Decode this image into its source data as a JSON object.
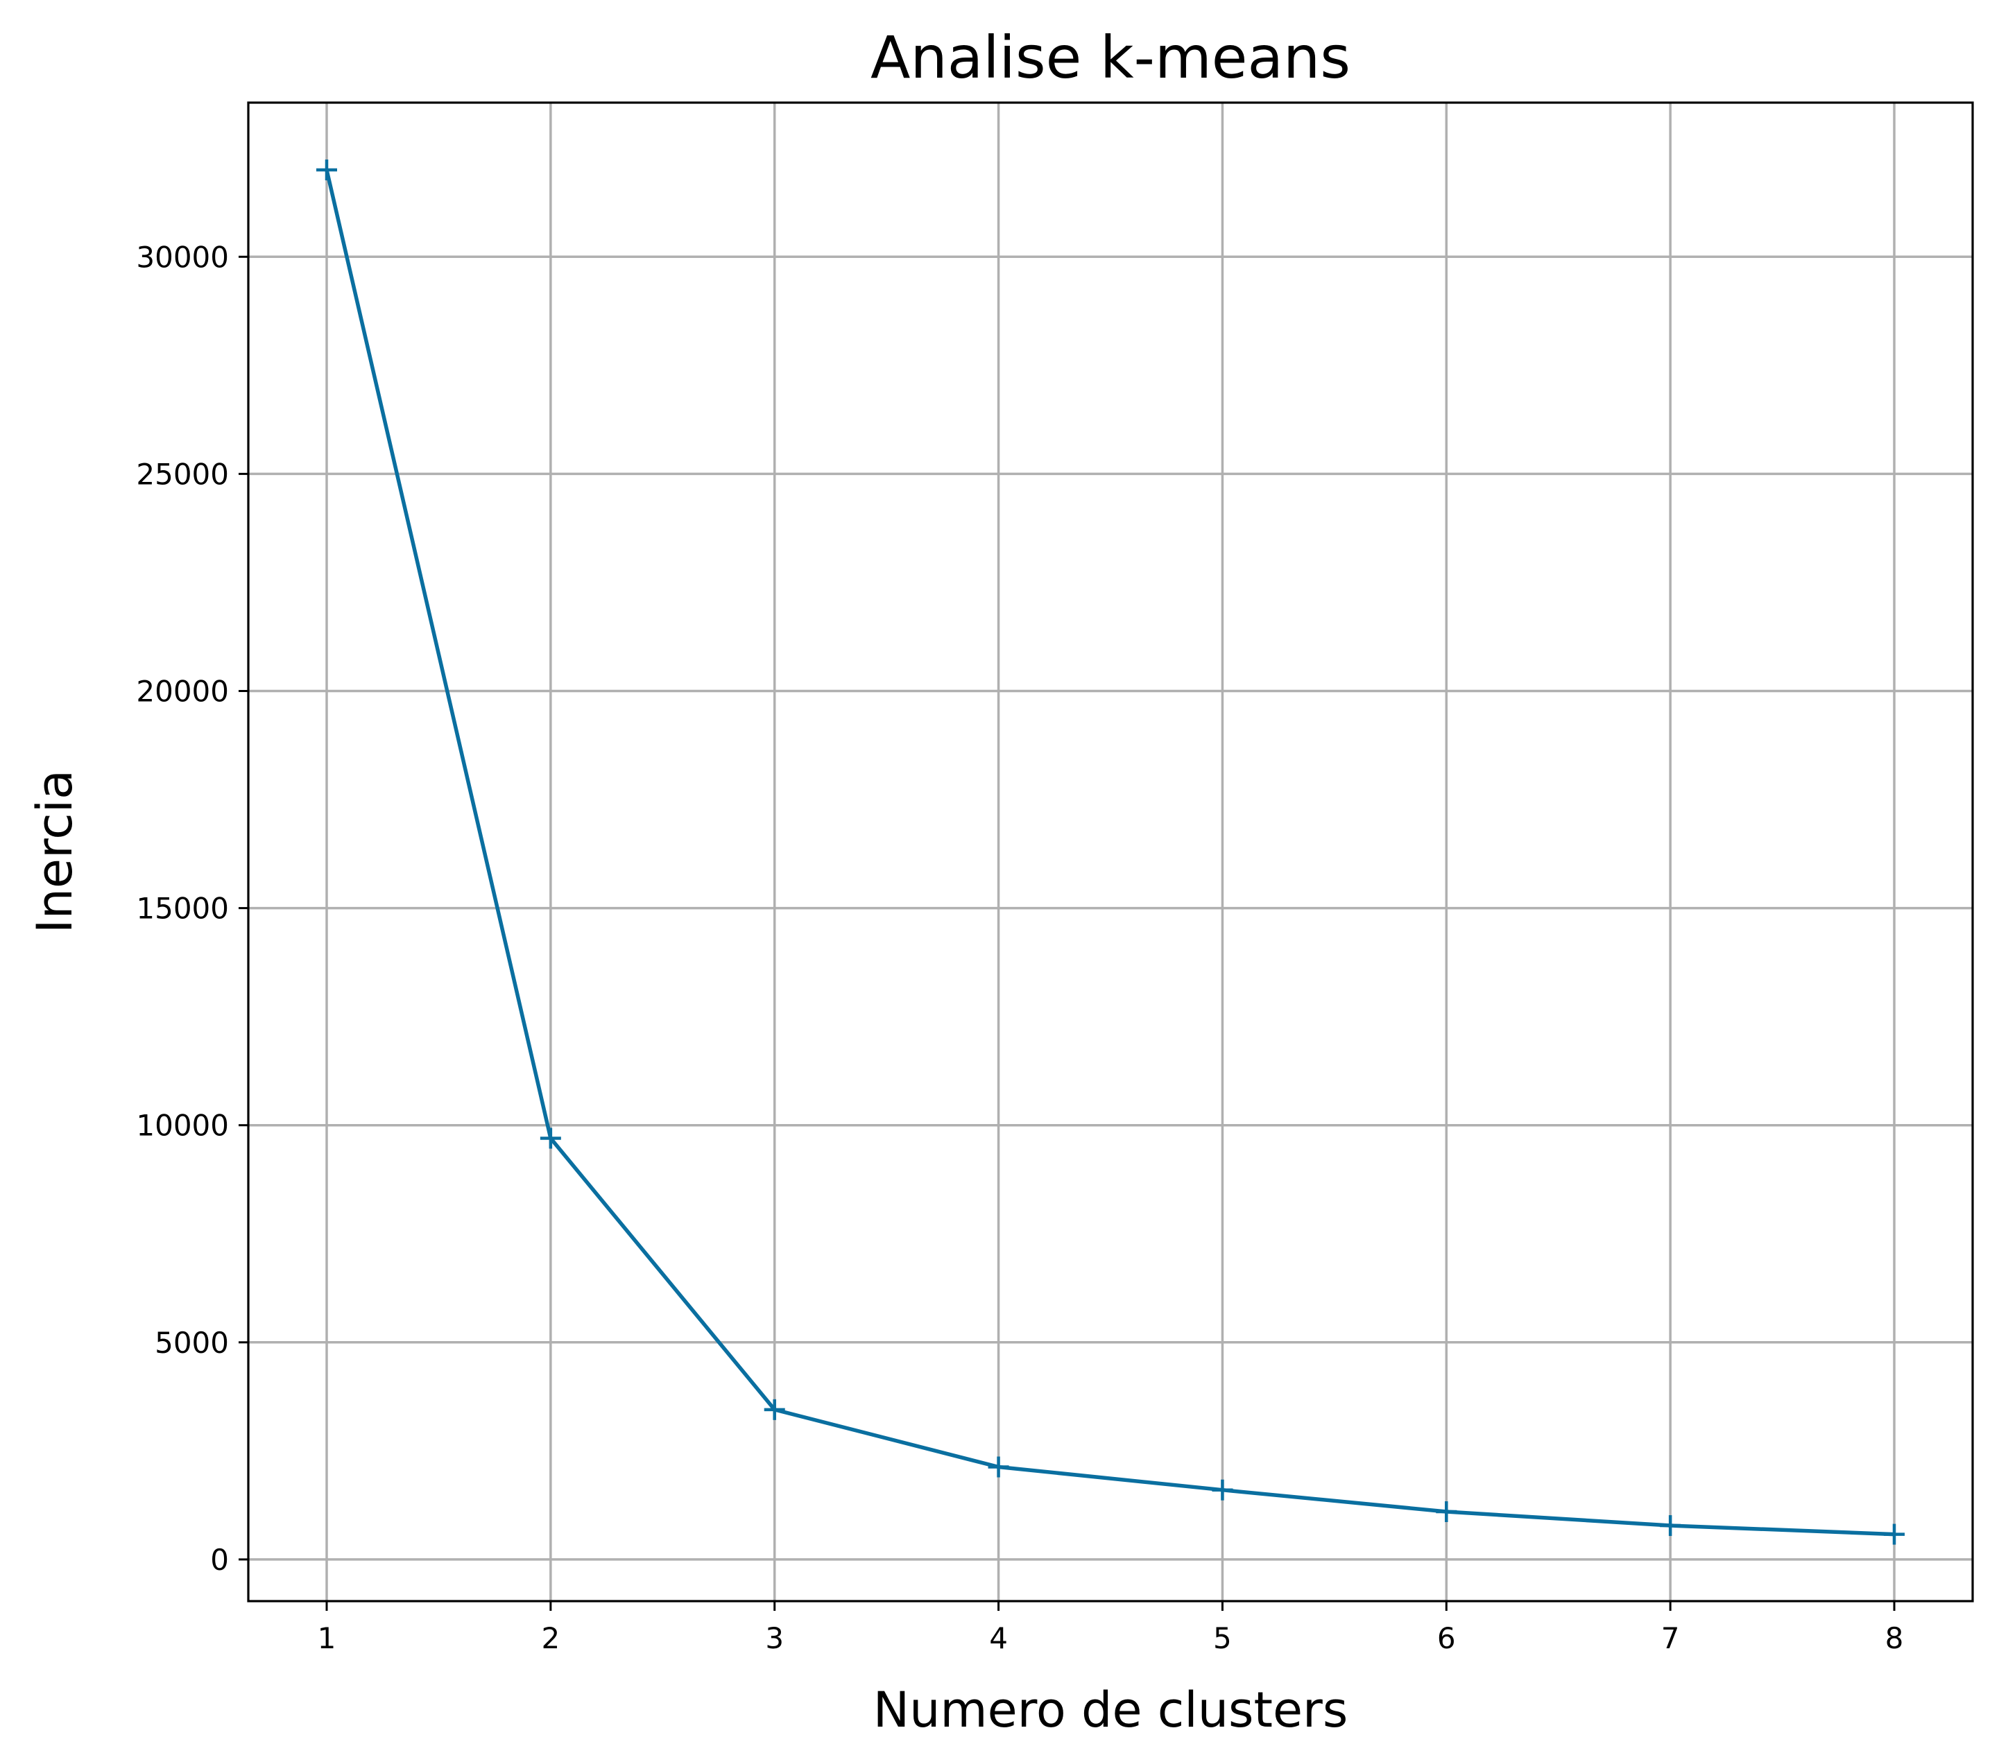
{
  "chart_data": {
    "type": "line",
    "title": "Analise k-means",
    "xlabel": "Numero de clusters",
    "ylabel": "Inercia",
    "x": [
      1,
      2,
      3,
      4,
      5,
      6,
      7,
      8
    ],
    "series": [
      {
        "values": [
          32000,
          9700,
          3450,
          2130,
          1600,
          1100,
          780,
          580
        ],
        "color": "#0a6fa0",
        "marker": "plus"
      }
    ],
    "x_ticks": [
      "1",
      "2",
      "3",
      "4",
      "5",
      "6",
      "7",
      "8"
    ],
    "y_ticks": [
      "0",
      "5000",
      "10000",
      "15000",
      "20000",
      "25000",
      "30000"
    ],
    "y_tick_values": [
      0,
      5000,
      10000,
      15000,
      20000,
      25000,
      30000
    ],
    "xlim": [
      0.65,
      8.35
    ],
    "ylim": [
      -960,
      33550
    ],
    "grid": true
  }
}
